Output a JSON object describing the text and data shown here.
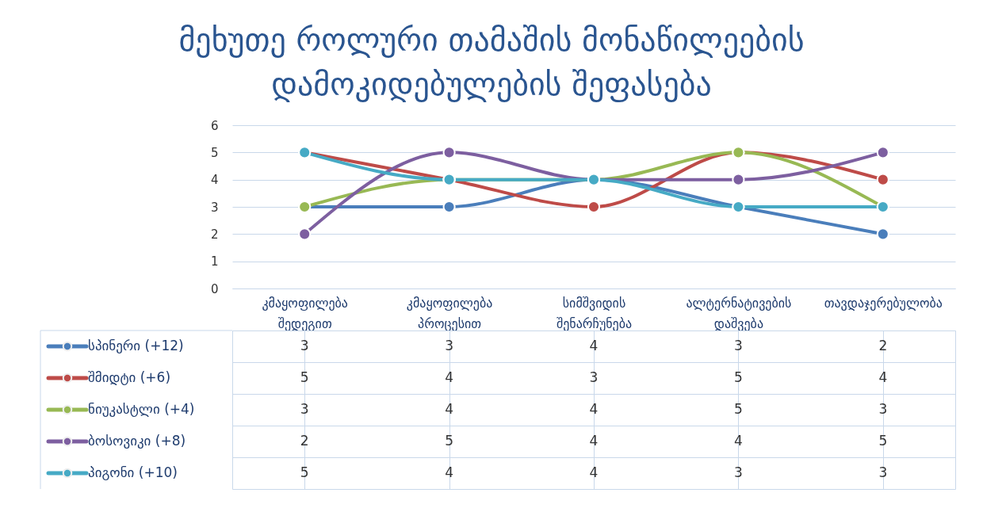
{
  "chart_data": {
    "type": "line",
    "title": "მეხუთე როლური თამაშის მონაწილეების დამოკიდებულების შეფასება",
    "categories": [
      "კმაყოფილება შედეგით",
      "კმაყოფილება პროცესით",
      "სიმშვიდის შენარჩუნება",
      "ალტერნატივების დაშვება",
      "თავდაჯერებულობა"
    ],
    "series": [
      {
        "name": "სპინერი (+12)",
        "color": "#4a7ebb",
        "values": [
          3,
          3,
          4,
          3,
          2
        ]
      },
      {
        "name": "შმიდტი (+6)",
        "color": "#be4b48",
        "values": [
          5,
          4,
          3,
          5,
          4
        ]
      },
      {
        "name": "ნიუკასტლი (+4)",
        "color": "#98b954",
        "values": [
          3,
          4,
          4,
          5,
          3
        ]
      },
      {
        "name": "ბოსოვიკი (+8)",
        "color": "#7d5fa0",
        "values": [
          2,
          5,
          4,
          4,
          5
        ]
      },
      {
        "name": "პიგონი (+10)",
        "color": "#46aac5",
        "values": [
          5,
          4,
          4,
          3,
          3
        ]
      }
    ],
    "ylim": [
      0,
      6
    ],
    "yticks": [
      0,
      1,
      2,
      3,
      4,
      5,
      6
    ],
    "grid": "y",
    "legend": "bottom left",
    "marker": "circle",
    "line_style": "solid",
    "data_labels": true
  }
}
